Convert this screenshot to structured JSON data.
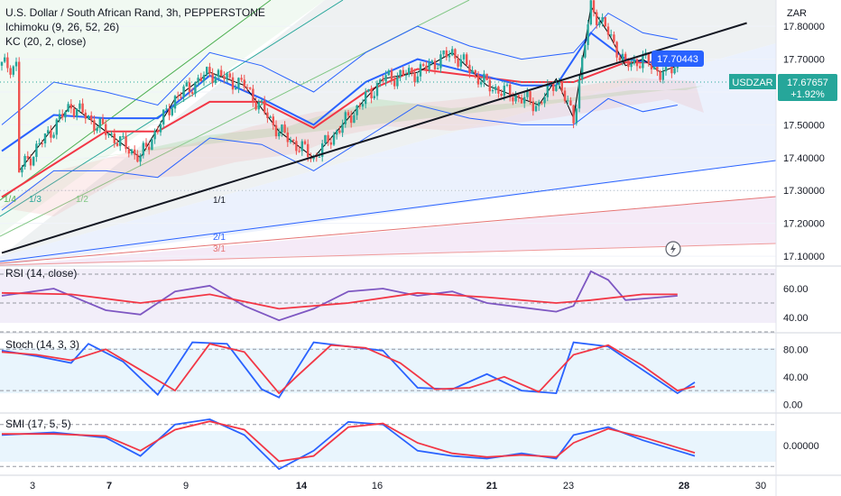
{
  "legend": {
    "title": "U.S. Dollar / South African Rand, 3h, PEPPERSTONE",
    "ichimoku": "Ichimoku (9, 26, 52, 26)",
    "kc": "KC (20, 2, close)",
    "rsi": "RSI (14, close)",
    "stoch": "Stoch (14, 3, 3)",
    "smi": "SMI (17, 5, 5)"
  },
  "currency": "ZAR",
  "symbol": "USDZAR",
  "last_price": "17.67657",
  "change": "+1.92%",
  "line_tag": "17.70443",
  "colors": {
    "up": "#26a69a",
    "down": "#ef5350",
    "blue": "#2962ff",
    "red": "#f23645",
    "black": "#131722",
    "price_tag": "#26a69a",
    "line_tag": "#2962ff",
    "rsi_line": "#7e57c2"
  },
  "gann_labels": [
    "1/4",
    "1/3",
    "1/2",
    "1/1",
    "2/1",
    "3/1"
  ],
  "chart_data": [
    {
      "type": "candlestick",
      "title": "U.S. Dollar / South African Rand, 3h, PEPPERSTONE",
      "x_ticks": [
        "3",
        "7",
        "9",
        "14",
        "16",
        "21",
        "23",
        "28",
        "30"
      ],
      "y_ticks": [
        "17.10000",
        "17.20000",
        "17.30000",
        "17.40000",
        "17.50000",
        "17.60000",
        "17.70000",
        "17.80000"
      ],
      "ylim": [
        17.07,
        17.88
      ],
      "close_trend": [
        [
          1,
          17.36
        ],
        [
          4,
          17.56
        ],
        [
          6,
          17.48
        ],
        [
          8,
          17.4
        ],
        [
          10,
          17.58
        ],
        [
          12,
          17.66
        ],
        [
          14,
          17.62
        ],
        [
          16,
          17.48
        ],
        [
          18,
          17.4
        ],
        [
          20,
          17.52
        ],
        [
          22,
          17.64
        ],
        [
          24,
          17.66
        ],
        [
          26,
          17.72
        ],
        [
          28,
          17.62
        ],
        [
          30,
          17.58
        ],
        [
          31,
          17.56
        ],
        [
          32,
          17.64
        ],
        [
          33,
          17.52
        ],
        [
          34,
          17.86
        ],
        [
          35,
          17.78
        ],
        [
          36,
          17.68
        ],
        [
          37,
          17.7
        ],
        [
          38,
          17.66
        ],
        [
          39,
          17.68
        ]
      ],
      "ichimoku_tenkan": [
        [
          0,
          17.42
        ],
        [
          3,
          17.53
        ],
        [
          6,
          17.52
        ],
        [
          9,
          17.52
        ],
        [
          12,
          17.65
        ],
        [
          15,
          17.58
        ],
        [
          18,
          17.5
        ],
        [
          21,
          17.63
        ],
        [
          24,
          17.7
        ],
        [
          27,
          17.66
        ],
        [
          30,
          17.62
        ],
        [
          32,
          17.62
        ],
        [
          34,
          17.78
        ],
        [
          36,
          17.7
        ],
        [
          39,
          17.68
        ]
      ],
      "ichimoku_kijun": [
        [
          0,
          17.28
        ],
        [
          3,
          17.38
        ],
        [
          6,
          17.48
        ],
        [
          9,
          17.48
        ],
        [
          12,
          17.57
        ],
        [
          15,
          17.57
        ],
        [
          18,
          17.49
        ],
        [
          21,
          17.6
        ],
        [
          24,
          17.67
        ],
        [
          27,
          17.65
        ],
        [
          30,
          17.63
        ],
        [
          33,
          17.63
        ],
        [
          36,
          17.69
        ],
        [
          39,
          17.69
        ]
      ],
      "keltner_upper": [
        [
          0,
          17.5
        ],
        [
          3,
          17.63
        ],
        [
          6,
          17.6
        ],
        [
          9,
          17.56
        ],
        [
          12,
          17.72
        ],
        [
          15,
          17.68
        ],
        [
          18,
          17.6
        ],
        [
          21,
          17.72
        ],
        [
          24,
          17.8
        ],
        [
          27,
          17.74
        ],
        [
          30,
          17.7
        ],
        [
          33,
          17.72
        ],
        [
          35,
          17.84
        ],
        [
          37,
          17.78
        ],
        [
          39,
          17.76
        ]
      ],
      "keltner_lower": [
        [
          0,
          17.24
        ],
        [
          3,
          17.36
        ],
        [
          6,
          17.36
        ],
        [
          9,
          17.34
        ],
        [
          12,
          17.46
        ],
        [
          15,
          17.44
        ],
        [
          18,
          17.36
        ],
        [
          21,
          17.46
        ],
        [
          24,
          17.56
        ],
        [
          27,
          17.52
        ],
        [
          30,
          17.5
        ],
        [
          33,
          17.5
        ],
        [
          35,
          17.58
        ],
        [
          37,
          17.54
        ],
        [
          39,
          17.56
        ]
      ],
      "trendline": [
        [
          0,
          17.11
        ],
        [
          43,
          17.81
        ]
      ],
      "price_tag": 17.67657,
      "line_tag": 17.70443
    },
    {
      "type": "line",
      "title": "RSI (14, close)",
      "ylim": [
        30,
        75
      ],
      "y_ticks": [
        "40.00",
        "60.00"
      ],
      "levels": [
        70,
        50,
        30
      ],
      "series": [
        {
          "name": "RSI",
          "values": [
            [
              0,
              55
            ],
            [
              3,
              60
            ],
            [
              6,
              45
            ],
            [
              8,
              42
            ],
            [
              10,
              58
            ],
            [
              12,
              62
            ],
            [
              14,
              48
            ],
            [
              16,
              38
            ],
            [
              18,
              46
            ],
            [
              20,
              58
            ],
            [
              22,
              60
            ],
            [
              24,
              55
            ],
            [
              26,
              58
            ],
            [
              28,
              50
            ],
            [
              30,
              47
            ],
            [
              32,
              44
            ],
            [
              33,
              48
            ],
            [
              34,
              72
            ],
            [
              35,
              66
            ],
            [
              36,
              52
            ],
            [
              38,
              54
            ],
            [
              39,
              55
            ]
          ]
        },
        {
          "name": "RSI-based MA",
          "values": [
            [
              0,
              57
            ],
            [
              4,
              56
            ],
            [
              8,
              50
            ],
            [
              12,
              56
            ],
            [
              16,
              46
            ],
            [
              20,
              50
            ],
            [
              24,
              57
            ],
            [
              28,
              54
            ],
            [
              32,
              50
            ],
            [
              34,
              52
            ],
            [
              37,
              56
            ],
            [
              39,
              56
            ]
          ]
        }
      ]
    },
    {
      "type": "line",
      "title": "Stoch (14, 3, 3)",
      "ylim": [
        -10,
        100
      ],
      "y_ticks": [
        "0.00",
        "40.00",
        "80.00"
      ],
      "levels": [
        80,
        20
      ],
      "series": [
        {
          "name": "%K",
          "values": [
            [
              0,
              78
            ],
            [
              2,
              70
            ],
            [
              4,
              60
            ],
            [
              5,
              88
            ],
            [
              7,
              62
            ],
            [
              9,
              14
            ],
            [
              11,
              90
            ],
            [
              13,
              88
            ],
            [
              15,
              22
            ],
            [
              16,
              10
            ],
            [
              18,
              90
            ],
            [
              20,
              84
            ],
            [
              22,
              78
            ],
            [
              24,
              24
            ],
            [
              26,
              22
            ],
            [
              28,
              44
            ],
            [
              30,
              20
            ],
            [
              32,
              16
            ],
            [
              33,
              90
            ],
            [
              35,
              84
            ],
            [
              37,
              50
            ],
            [
              39,
              16
            ],
            [
              40,
              32
            ]
          ]
        },
        {
          "name": "%D",
          "values": [
            [
              0,
              76
            ],
            [
              2,
              72
            ],
            [
              4,
              64
            ],
            [
              6,
              80
            ],
            [
              8,
              50
            ],
            [
              10,
              20
            ],
            [
              12,
              88
            ],
            [
              14,
              76
            ],
            [
              16,
              16
            ],
            [
              17,
              40
            ],
            [
              19,
              86
            ],
            [
              21,
              82
            ],
            [
              23,
              60
            ],
            [
              25,
              22
            ],
            [
              27,
              24
            ],
            [
              29,
              40
            ],
            [
              31,
              18
            ],
            [
              33,
              72
            ],
            [
              35,
              86
            ],
            [
              37,
              56
            ],
            [
              39,
              20
            ],
            [
              40,
              26
            ]
          ]
        }
      ]
    },
    {
      "type": "line",
      "title": "SMI (17, 5, 5)",
      "ylim": [
        -55,
        55
      ],
      "y_ticks": [
        "0.00000"
      ],
      "levels": [
        40,
        -40
      ],
      "series": [
        {
          "name": "SMI",
          "values": [
            [
              0,
              20
            ],
            [
              3,
              25
            ],
            [
              6,
              15
            ],
            [
              8,
              -20
            ],
            [
              10,
              40
            ],
            [
              12,
              50
            ],
            [
              14,
              20
            ],
            [
              16,
              -45
            ],
            [
              18,
              -10
            ],
            [
              20,
              45
            ],
            [
              22,
              40
            ],
            [
              24,
              -10
            ],
            [
              26,
              -20
            ],
            [
              28,
              -25
            ],
            [
              30,
              -15
            ],
            [
              32,
              -25
            ],
            [
              33,
              20
            ],
            [
              35,
              35
            ],
            [
              37,
              10
            ],
            [
              39,
              -10
            ],
            [
              40,
              -20
            ]
          ]
        },
        {
          "name": "Signal",
          "values": [
            [
              0,
              22
            ],
            [
              3,
              22
            ],
            [
              6,
              18
            ],
            [
              8,
              -10
            ],
            [
              10,
              30
            ],
            [
              12,
              46
            ],
            [
              14,
              30
            ],
            [
              16,
              -30
            ],
            [
              18,
              -20
            ],
            [
              20,
              35
            ],
            [
              22,
              42
            ],
            [
              24,
              5
            ],
            [
              26,
              -15
            ],
            [
              28,
              -22
            ],
            [
              30,
              -18
            ],
            [
              32,
              -22
            ],
            [
              33,
              5
            ],
            [
              35,
              32
            ],
            [
              37,
              16
            ],
            [
              39,
              -4
            ],
            [
              40,
              -14
            ]
          ]
        }
      ]
    }
  ]
}
